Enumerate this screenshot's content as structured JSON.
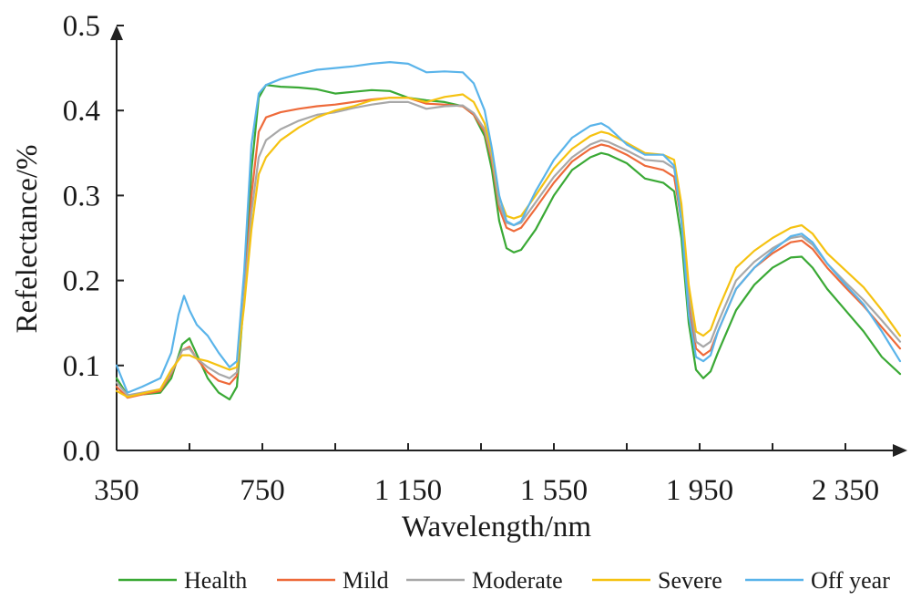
{
  "chart_data": {
    "type": "line",
    "xlabel": "Wavelength/nm",
    "ylabel": "Refelectance/%",
    "xlim": [
      350,
      2500
    ],
    "ylim": [
      0,
      0.5
    ],
    "x_ticks": [
      350,
      550,
      750,
      950,
      1150,
      1350,
      1550,
      1750,
      1950,
      2150,
      2350
    ],
    "x_tick_labels": [
      {
        "value": 350,
        "text": "350"
      },
      {
        "value": 750,
        "text": "750"
      },
      {
        "value": 1150,
        "text": "1 150"
      },
      {
        "value": 1550,
        "text": "1 550"
      },
      {
        "value": 1950,
        "text": "1 950"
      },
      {
        "value": 2350,
        "text": "2 350"
      }
    ],
    "y_ticks": [
      0.0,
      0.1,
      0.2,
      0.3,
      0.4,
      0.5
    ],
    "y_tick_labels": [
      "0.0",
      "0.1",
      "0.2",
      "0.3",
      "0.4",
      "0.5"
    ],
    "grid": false,
    "legend_position": "bottom",
    "series": [
      {
        "name": "Health",
        "color": "#3aa935",
        "points": [
          [
            350,
            0.085
          ],
          [
            380,
            0.065
          ],
          [
            420,
            0.066
          ],
          [
            470,
            0.068
          ],
          [
            500,
            0.085
          ],
          [
            530,
            0.125
          ],
          [
            550,
            0.132
          ],
          [
            570,
            0.113
          ],
          [
            600,
            0.085
          ],
          [
            630,
            0.068
          ],
          [
            660,
            0.06
          ],
          [
            680,
            0.075
          ],
          [
            700,
            0.18
          ],
          [
            720,
            0.33
          ],
          [
            740,
            0.415
          ],
          [
            760,
            0.43
          ],
          [
            800,
            0.428
          ],
          [
            850,
            0.427
          ],
          [
            900,
            0.425
          ],
          [
            950,
            0.42
          ],
          [
            1000,
            0.422
          ],
          [
            1050,
            0.424
          ],
          [
            1100,
            0.423
          ],
          [
            1150,
            0.415
          ],
          [
            1200,
            0.412
          ],
          [
            1250,
            0.41
          ],
          [
            1300,
            0.405
          ],
          [
            1330,
            0.395
          ],
          [
            1360,
            0.37
          ],
          [
            1380,
            0.33
          ],
          [
            1400,
            0.27
          ],
          [
            1420,
            0.238
          ],
          [
            1440,
            0.233
          ],
          [
            1460,
            0.236
          ],
          [
            1500,
            0.26
          ],
          [
            1550,
            0.3
          ],
          [
            1600,
            0.33
          ],
          [
            1650,
            0.345
          ],
          [
            1680,
            0.35
          ],
          [
            1700,
            0.348
          ],
          [
            1750,
            0.338
          ],
          [
            1800,
            0.32
          ],
          [
            1850,
            0.315
          ],
          [
            1880,
            0.305
          ],
          [
            1900,
            0.25
          ],
          [
            1920,
            0.15
          ],
          [
            1940,
            0.095
          ],
          [
            1960,
            0.085
          ],
          [
            1980,
            0.093
          ],
          [
            2000,
            0.115
          ],
          [
            2050,
            0.165
          ],
          [
            2100,
            0.195
          ],
          [
            2150,
            0.215
          ],
          [
            2200,
            0.227
          ],
          [
            2230,
            0.228
          ],
          [
            2260,
            0.215
          ],
          [
            2300,
            0.19
          ],
          [
            2350,
            0.165
          ],
          [
            2400,
            0.14
          ],
          [
            2450,
            0.11
          ],
          [
            2500,
            0.09
          ]
        ]
      },
      {
        "name": "Mild",
        "color": "#ee6a3a",
        "points": [
          [
            350,
            0.075
          ],
          [
            380,
            0.062
          ],
          [
            420,
            0.066
          ],
          [
            470,
            0.07
          ],
          [
            500,
            0.09
          ],
          [
            530,
            0.118
          ],
          [
            550,
            0.122
          ],
          [
            570,
            0.108
          ],
          [
            600,
            0.092
          ],
          [
            630,
            0.082
          ],
          [
            660,
            0.078
          ],
          [
            680,
            0.088
          ],
          [
            700,
            0.18
          ],
          [
            720,
            0.3
          ],
          [
            740,
            0.375
          ],
          [
            760,
            0.392
          ],
          [
            800,
            0.398
          ],
          [
            850,
            0.402
          ],
          [
            900,
            0.405
          ],
          [
            950,
            0.407
          ],
          [
            1000,
            0.41
          ],
          [
            1050,
            0.413
          ],
          [
            1100,
            0.415
          ],
          [
            1150,
            0.415
          ],
          [
            1200,
            0.408
          ],
          [
            1250,
            0.407
          ],
          [
            1300,
            0.405
          ],
          [
            1330,
            0.395
          ],
          [
            1360,
            0.375
          ],
          [
            1380,
            0.34
          ],
          [
            1400,
            0.285
          ],
          [
            1420,
            0.262
          ],
          [
            1440,
            0.258
          ],
          [
            1460,
            0.262
          ],
          [
            1500,
            0.285
          ],
          [
            1550,
            0.315
          ],
          [
            1600,
            0.34
          ],
          [
            1650,
            0.355
          ],
          [
            1680,
            0.36
          ],
          [
            1700,
            0.358
          ],
          [
            1750,
            0.348
          ],
          [
            1800,
            0.335
          ],
          [
            1850,
            0.33
          ],
          [
            1880,
            0.322
          ],
          [
            1900,
            0.27
          ],
          [
            1920,
            0.175
          ],
          [
            1940,
            0.12
          ],
          [
            1960,
            0.112
          ],
          [
            1980,
            0.118
          ],
          [
            2000,
            0.14
          ],
          [
            2050,
            0.19
          ],
          [
            2100,
            0.215
          ],
          [
            2150,
            0.232
          ],
          [
            2200,
            0.245
          ],
          [
            2230,
            0.247
          ],
          [
            2260,
            0.237
          ],
          [
            2300,
            0.215
          ],
          [
            2350,
            0.192
          ],
          [
            2400,
            0.17
          ],
          [
            2450,
            0.145
          ],
          [
            2500,
            0.12
          ]
        ]
      },
      {
        "name": "Moderate",
        "color": "#a8a8a8",
        "points": [
          [
            350,
            0.08
          ],
          [
            380,
            0.065
          ],
          [
            420,
            0.068
          ],
          [
            470,
            0.072
          ],
          [
            500,
            0.092
          ],
          [
            530,
            0.118
          ],
          [
            550,
            0.12
          ],
          [
            570,
            0.108
          ],
          [
            600,
            0.098
          ],
          [
            630,
            0.09
          ],
          [
            660,
            0.085
          ],
          [
            680,
            0.092
          ],
          [
            700,
            0.18
          ],
          [
            720,
            0.28
          ],
          [
            740,
            0.345
          ],
          [
            760,
            0.365
          ],
          [
            800,
            0.378
          ],
          [
            850,
            0.388
          ],
          [
            900,
            0.395
          ],
          [
            950,
            0.398
          ],
          [
            1000,
            0.403
          ],
          [
            1050,
            0.407
          ],
          [
            1100,
            0.41
          ],
          [
            1150,
            0.41
          ],
          [
            1200,
            0.402
          ],
          [
            1250,
            0.405
          ],
          [
            1300,
            0.406
          ],
          [
            1330,
            0.397
          ],
          [
            1360,
            0.378
          ],
          [
            1380,
            0.345
          ],
          [
            1400,
            0.29
          ],
          [
            1420,
            0.268
          ],
          [
            1440,
            0.265
          ],
          [
            1460,
            0.268
          ],
          [
            1500,
            0.292
          ],
          [
            1550,
            0.322
          ],
          [
            1600,
            0.345
          ],
          [
            1650,
            0.36
          ],
          [
            1680,
            0.365
          ],
          [
            1700,
            0.363
          ],
          [
            1750,
            0.353
          ],
          [
            1800,
            0.342
          ],
          [
            1850,
            0.34
          ],
          [
            1880,
            0.332
          ],
          [
            1900,
            0.28
          ],
          [
            1920,
            0.185
          ],
          [
            1940,
            0.128
          ],
          [
            1960,
            0.122
          ],
          [
            1980,
            0.128
          ],
          [
            2000,
            0.15
          ],
          [
            2050,
            0.2
          ],
          [
            2100,
            0.222
          ],
          [
            2150,
            0.238
          ],
          [
            2200,
            0.25
          ],
          [
            2230,
            0.252
          ],
          [
            2260,
            0.242
          ],
          [
            2300,
            0.22
          ],
          [
            2350,
            0.198
          ],
          [
            2400,
            0.177
          ],
          [
            2450,
            0.153
          ],
          [
            2500,
            0.128
          ]
        ]
      },
      {
        "name": "Severe",
        "color": "#f5c211",
        "points": [
          [
            350,
            0.07
          ],
          [
            380,
            0.063
          ],
          [
            420,
            0.067
          ],
          [
            470,
            0.072
          ],
          [
            500,
            0.095
          ],
          [
            530,
            0.112
          ],
          [
            550,
            0.112
          ],
          [
            570,
            0.108
          ],
          [
            600,
            0.105
          ],
          [
            630,
            0.1
          ],
          [
            660,
            0.095
          ],
          [
            680,
            0.098
          ],
          [
            700,
            0.17
          ],
          [
            720,
            0.26
          ],
          [
            740,
            0.325
          ],
          [
            760,
            0.345
          ],
          [
            800,
            0.365
          ],
          [
            850,
            0.38
          ],
          [
            900,
            0.392
          ],
          [
            950,
            0.4
          ],
          [
            1000,
            0.405
          ],
          [
            1050,
            0.412
          ],
          [
            1100,
            0.415
          ],
          [
            1150,
            0.415
          ],
          [
            1200,
            0.41
          ],
          [
            1250,
            0.416
          ],
          [
            1300,
            0.419
          ],
          [
            1330,
            0.41
          ],
          [
            1360,
            0.385
          ],
          [
            1380,
            0.35
          ],
          [
            1400,
            0.298
          ],
          [
            1420,
            0.276
          ],
          [
            1440,
            0.273
          ],
          [
            1460,
            0.276
          ],
          [
            1500,
            0.3
          ],
          [
            1550,
            0.332
          ],
          [
            1600,
            0.355
          ],
          [
            1650,
            0.37
          ],
          [
            1680,
            0.375
          ],
          [
            1700,
            0.373
          ],
          [
            1750,
            0.362
          ],
          [
            1800,
            0.35
          ],
          [
            1850,
            0.348
          ],
          [
            1880,
            0.342
          ],
          [
            1900,
            0.29
          ],
          [
            1920,
            0.195
          ],
          [
            1940,
            0.14
          ],
          [
            1960,
            0.135
          ],
          [
            1980,
            0.142
          ],
          [
            2000,
            0.165
          ],
          [
            2050,
            0.215
          ],
          [
            2100,
            0.235
          ],
          [
            2150,
            0.25
          ],
          [
            2200,
            0.262
          ],
          [
            2230,
            0.265
          ],
          [
            2260,
            0.255
          ],
          [
            2300,
            0.232
          ],
          [
            2350,
            0.212
          ],
          [
            2400,
            0.192
          ],
          [
            2450,
            0.165
          ],
          [
            2500,
            0.135
          ]
        ]
      },
      {
        "name": "Off year",
        "color": "#5ab4ea",
        "points": [
          [
            350,
            0.1
          ],
          [
            380,
            0.068
          ],
          [
            420,
            0.075
          ],
          [
            470,
            0.085
          ],
          [
            500,
            0.115
          ],
          [
            520,
            0.16
          ],
          [
            535,
            0.182
          ],
          [
            550,
            0.165
          ],
          [
            570,
            0.148
          ],
          [
            600,
            0.135
          ],
          [
            630,
            0.115
          ],
          [
            660,
            0.098
          ],
          [
            680,
            0.105
          ],
          [
            700,
            0.21
          ],
          [
            720,
            0.36
          ],
          [
            740,
            0.42
          ],
          [
            760,
            0.43
          ],
          [
            800,
            0.437
          ],
          [
            850,
            0.443
          ],
          [
            900,
            0.448
          ],
          [
            950,
            0.45
          ],
          [
            1000,
            0.452
          ],
          [
            1050,
            0.455
          ],
          [
            1100,
            0.457
          ],
          [
            1150,
            0.455
          ],
          [
            1200,
            0.445
          ],
          [
            1250,
            0.446
          ],
          [
            1300,
            0.445
          ],
          [
            1330,
            0.432
          ],
          [
            1360,
            0.4
          ],
          [
            1380,
            0.355
          ],
          [
            1400,
            0.3
          ],
          [
            1420,
            0.27
          ],
          [
            1440,
            0.265
          ],
          [
            1460,
            0.27
          ],
          [
            1500,
            0.305
          ],
          [
            1550,
            0.342
          ],
          [
            1600,
            0.368
          ],
          [
            1650,
            0.382
          ],
          [
            1680,
            0.385
          ],
          [
            1700,
            0.38
          ],
          [
            1750,
            0.36
          ],
          [
            1800,
            0.348
          ],
          [
            1850,
            0.348
          ],
          [
            1880,
            0.335
          ],
          [
            1900,
            0.27
          ],
          [
            1920,
            0.16
          ],
          [
            1940,
            0.11
          ],
          [
            1960,
            0.105
          ],
          [
            1980,
            0.112
          ],
          [
            2000,
            0.14
          ],
          [
            2050,
            0.19
          ],
          [
            2100,
            0.215
          ],
          [
            2150,
            0.235
          ],
          [
            2200,
            0.252
          ],
          [
            2230,
            0.255
          ],
          [
            2260,
            0.245
          ],
          [
            2300,
            0.22
          ],
          [
            2350,
            0.195
          ],
          [
            2400,
            0.172
          ],
          [
            2450,
            0.14
          ],
          [
            2500,
            0.105
          ]
        ]
      }
    ]
  }
}
